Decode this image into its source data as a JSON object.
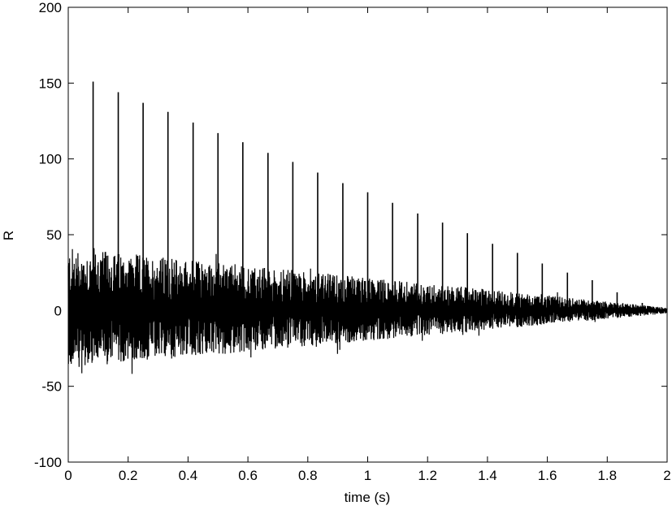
{
  "chart_data": {
    "type": "line",
    "title": "",
    "xlabel": "time (s)",
    "ylabel": "R",
    "xlim": [
      0,
      2
    ],
    "ylim": [
      -100,
      200
    ],
    "xticks": [
      0,
      0.2,
      0.4,
      0.6,
      0.8,
      1,
      1.2,
      1.4,
      1.6,
      1.8,
      2
    ],
    "yticks": [
      -100,
      -50,
      0,
      50,
      100,
      150,
      200
    ],
    "xtick_labels": [
      "0",
      "0.2",
      "0.4",
      "0.6",
      "0.8",
      "1",
      "1.2",
      "1.4",
      "1.6",
      "1.8",
      "2"
    ],
    "ytick_labels": [
      "-100",
      "-50",
      "0",
      "50",
      "100",
      "150",
      "200"
    ],
    "grid": false,
    "line_color": "#000000",
    "peaks": [
      {
        "x": 0.083,
        "y": 151
      },
      {
        "x": 0.167,
        "y": 144
      },
      {
        "x": 0.25,
        "y": 137
      },
      {
        "x": 0.333,
        "y": 131
      },
      {
        "x": 0.417,
        "y": 124
      },
      {
        "x": 0.5,
        "y": 117
      },
      {
        "x": 0.583,
        "y": 111
      },
      {
        "x": 0.667,
        "y": 104
      },
      {
        "x": 0.75,
        "y": 98
      },
      {
        "x": 0.833,
        "y": 91
      },
      {
        "x": 0.917,
        "y": 84
      },
      {
        "x": 1.0,
        "y": 78
      },
      {
        "x": 1.083,
        "y": 71
      },
      {
        "x": 1.167,
        "y": 64
      },
      {
        "x": 1.25,
        "y": 58
      },
      {
        "x": 1.333,
        "y": 51
      },
      {
        "x": 1.417,
        "y": 44
      },
      {
        "x": 1.5,
        "y": 38
      },
      {
        "x": 1.583,
        "y": 31
      },
      {
        "x": 1.667,
        "y": 25
      },
      {
        "x": 1.75,
        "y": 20
      },
      {
        "x": 1.833,
        "y": 12
      },
      {
        "x": 1.917,
        "y": 5
      }
    ],
    "noise_envelope": {
      "upper_start": 55,
      "lower_start": -50,
      "upper_end": 2,
      "lower_end": -2,
      "x_end": 2
    }
  }
}
